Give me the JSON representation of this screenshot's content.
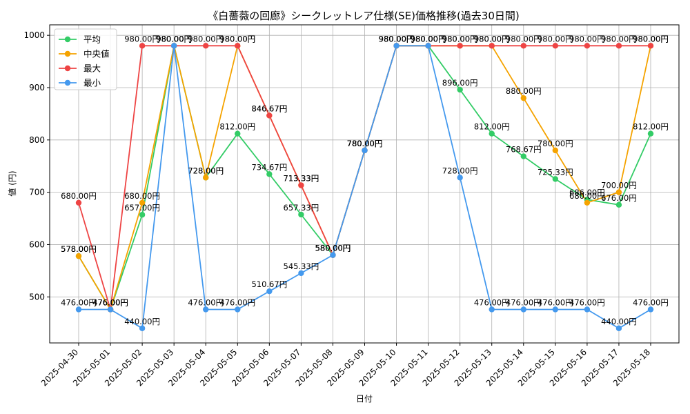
{
  "chart_data": {
    "type": "line",
    "title": "《白薔薇の回廊》シークレットレア仕様(SE)価格推移(過去30日間)",
    "xlabel": "日付",
    "ylabel": "値 (円)",
    "ylim": [
      412,
      1020
    ],
    "yticks": [
      500,
      600,
      700,
      800,
      900,
      1000
    ],
    "grid": true,
    "legend_position": "top-left",
    "value_suffix": "円",
    "categories": [
      "2025-04-30",
      "2025-05-01",
      "2025-05-02",
      "2025-05-03",
      "2025-05-04",
      "2025-05-05",
      "2025-05-06",
      "2025-05-07",
      "2025-05-08",
      "2025-05-09",
      "2025-05-10",
      "2025-05-11",
      "2025-05-12",
      "2025-05-13",
      "2025-05-14",
      "2025-05-15",
      "2025-05-16",
      "2025-05-17",
      "2025-05-18"
    ],
    "series": [
      {
        "name": "平均",
        "color": "#33cc66",
        "values": [
          578.0,
          476.0,
          657.0,
          980.0,
          728.0,
          812.0,
          734.67,
          657.33,
          580.0,
          780.0,
          980.0,
          980.0,
          896.0,
          812.0,
          768.67,
          725.33,
          686.0,
          676.0,
          812.0
        ]
      },
      {
        "name": "中央値",
        "color": "#f5a300",
        "values": [
          578.0,
          476.0,
          680.0,
          980.0,
          728.0,
          980.0,
          846.67,
          713.33,
          580.0,
          780.0,
          980.0,
          980.0,
          980.0,
          980.0,
          880.0,
          780.0,
          680.0,
          700.0,
          980.0
        ]
      },
      {
        "name": "最大",
        "color": "#ee4444",
        "values": [
          680.0,
          476.0,
          980.0,
          980.0,
          980.0,
          980.0,
          846.67,
          713.33,
          580.0,
          780.0,
          980.0,
          980.0,
          980.0,
          980.0,
          980.0,
          980.0,
          980.0,
          980.0,
          980.0
        ]
      },
      {
        "name": "最小",
        "color": "#4499ee",
        "values": [
          476.0,
          476.0,
          440.0,
          980.0,
          476.0,
          476.0,
          510.67,
          545.33,
          580.0,
          780.0,
          980.0,
          980.0,
          728.0,
          476.0,
          476.0,
          476.0,
          476.0,
          440.0,
          476.0
        ]
      }
    ]
  }
}
